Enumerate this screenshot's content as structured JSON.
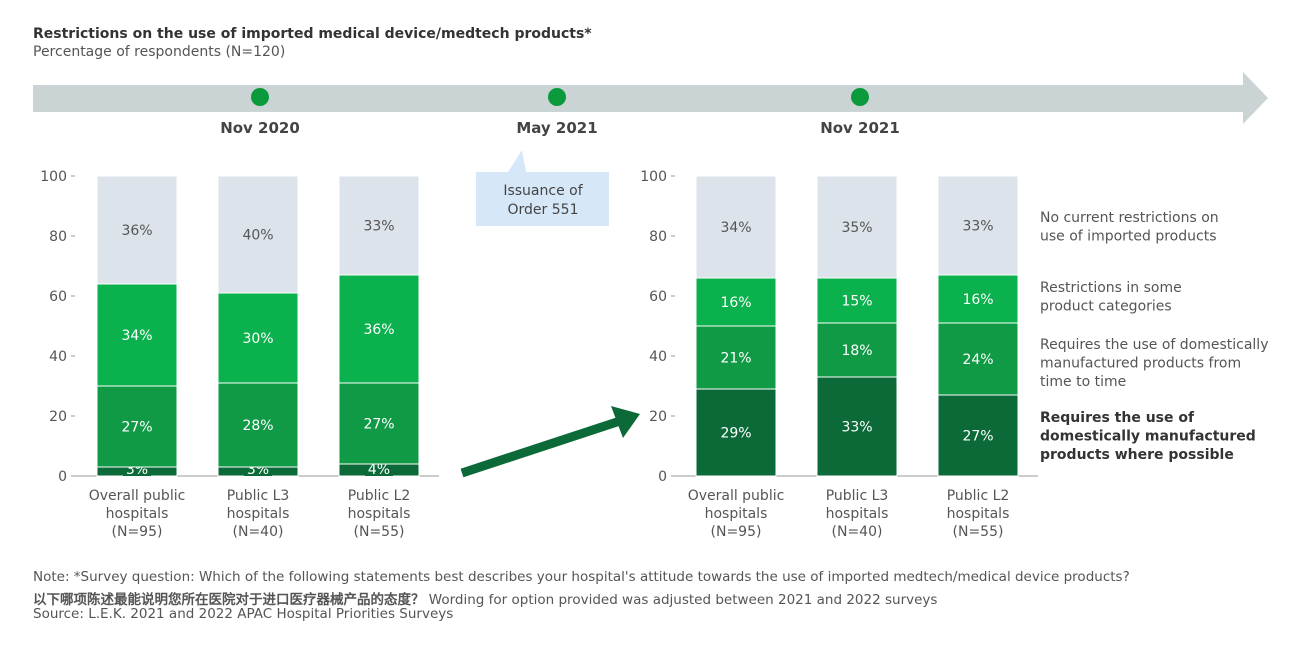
{
  "title": "Restrictions on the use of imported medical device/medtech products*",
  "subtitle": "Percentage of respondents (N=120)",
  "timeline": {
    "points": [
      "Nov 2020",
      "May 2021",
      "Nov 2021"
    ],
    "callout": [
      "Issuance of",
      "Order 551"
    ]
  },
  "colors": {
    "no_restrictions": "#dde3ea",
    "some_categories": "#0ab14d",
    "time_to_time": "#109a45",
    "where_possible": "#0b6a38",
    "timeline": "#cbd4d4",
    "dot": "#0a9a3c",
    "callout": "#d6e7f8"
  },
  "chart_data": [
    {
      "type": "bar",
      "stacked": true,
      "period": "Nov 2020",
      "categories": [
        [
          "Overall public",
          "hospitals",
          "(N=95)"
        ],
        [
          "Public L3",
          "hospitals",
          "(N=40)"
        ],
        [
          "Public L2",
          "hospitals",
          "(N=55)"
        ]
      ],
      "ylim": [
        0,
        100
      ],
      "yticks": [
        "0",
        "20",
        "40",
        "60",
        "80",
        "100"
      ],
      "series": [
        {
          "name": "Requires the use of domestically manufactured products where possible",
          "values": [
            3,
            3,
            4
          ]
        },
        {
          "name": "Requires the use of domestically manufactured products from time to time",
          "values": [
            27,
            28,
            27
          ]
        },
        {
          "name": "Restrictions in some product categories",
          "values": [
            34,
            30,
            36
          ]
        },
        {
          "name": "No current restrictions on use of imported products",
          "values": [
            36,
            40,
            33
          ]
        }
      ]
    },
    {
      "type": "bar",
      "stacked": true,
      "period": "Nov 2021",
      "categories": [
        [
          "Overall public",
          "hospitals",
          "(N=95)"
        ],
        [
          "Public L3",
          "hospitals",
          "(N=40)"
        ],
        [
          "Public L2",
          "hospitals",
          "(N=55)"
        ]
      ],
      "ylim": [
        0,
        100
      ],
      "yticks": [
        "0",
        "20",
        "40",
        "60",
        "80",
        "100"
      ],
      "series": [
        {
          "name": "Requires the use of domestically manufactured products where possible",
          "values": [
            29,
            33,
            27
          ]
        },
        {
          "name": "Requires the use of domestically manufactured products from time to time",
          "values": [
            21,
            18,
            24
          ]
        },
        {
          "name": "Restrictions in some product categories",
          "values": [
            16,
            15,
            16
          ]
        },
        {
          "name": "No current restrictions on use of imported products",
          "values": [
            34,
            35,
            33
          ]
        }
      ]
    }
  ],
  "legend": [
    {
      "lines": [
        "No current restrictions on",
        "use of imported products"
      ],
      "bold": false
    },
    {
      "lines": [
        "Restrictions in some",
        "product categories"
      ],
      "bold": false
    },
    {
      "lines": [
        "Requires the use of domestically",
        "manufactured products from",
        "time to time"
      ],
      "bold": false
    },
    {
      "lines": [
        "Requires the use of",
        "domestically manufactured",
        "products where possible"
      ],
      "bold": true
    }
  ],
  "notes": {
    "line1": "Note:   *Survey question: Which of the following statements best describes your hospital's attitude towards the use of imported medtech/medical device products?",
    "line2_cn": "以下哪项陈述最能说明您所在医院对于进口医疗器械产品的态度？",
    "line2": " Wording for option provided was adjusted between 2021 and 2022 surveys",
    "source": "Source: L.E.K. 2021 and 2022 APAC Hospital Priorities Surveys"
  }
}
